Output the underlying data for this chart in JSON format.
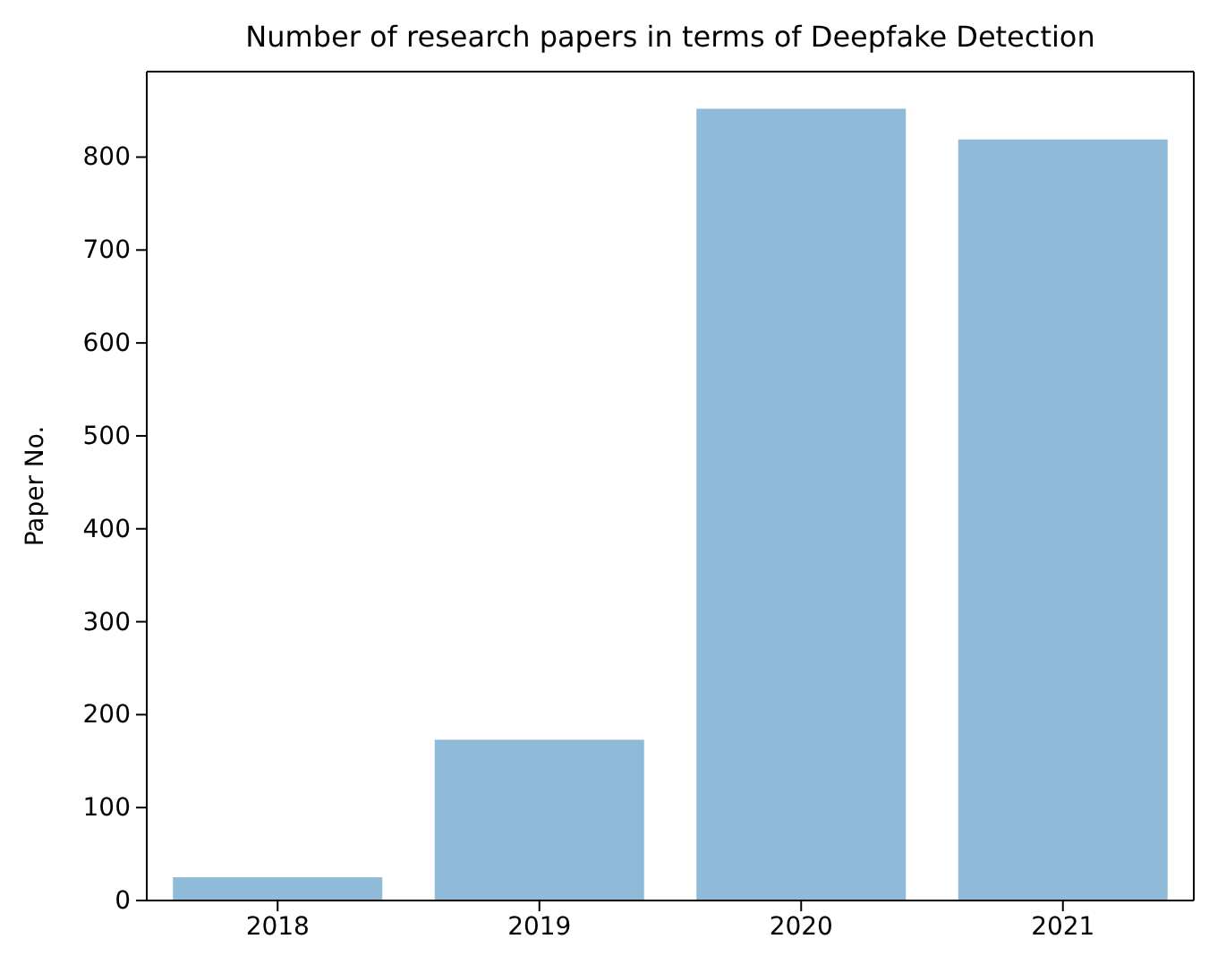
{
  "chart_data": {
    "type": "bar",
    "title": "Number of research papers in terms of Deepfake Detection",
    "ylabel": "Paper No.",
    "categories": [
      "2018",
      "2019",
      "2020",
      "2021"
    ],
    "values": [
      25,
      173,
      852,
      819
    ],
    "color": "#8fbbd9",
    "ylim": [
      0,
      892
    ],
    "yticks": [
      0,
      100,
      200,
      300,
      400,
      500,
      600,
      700,
      800
    ],
    "grid": false
  }
}
